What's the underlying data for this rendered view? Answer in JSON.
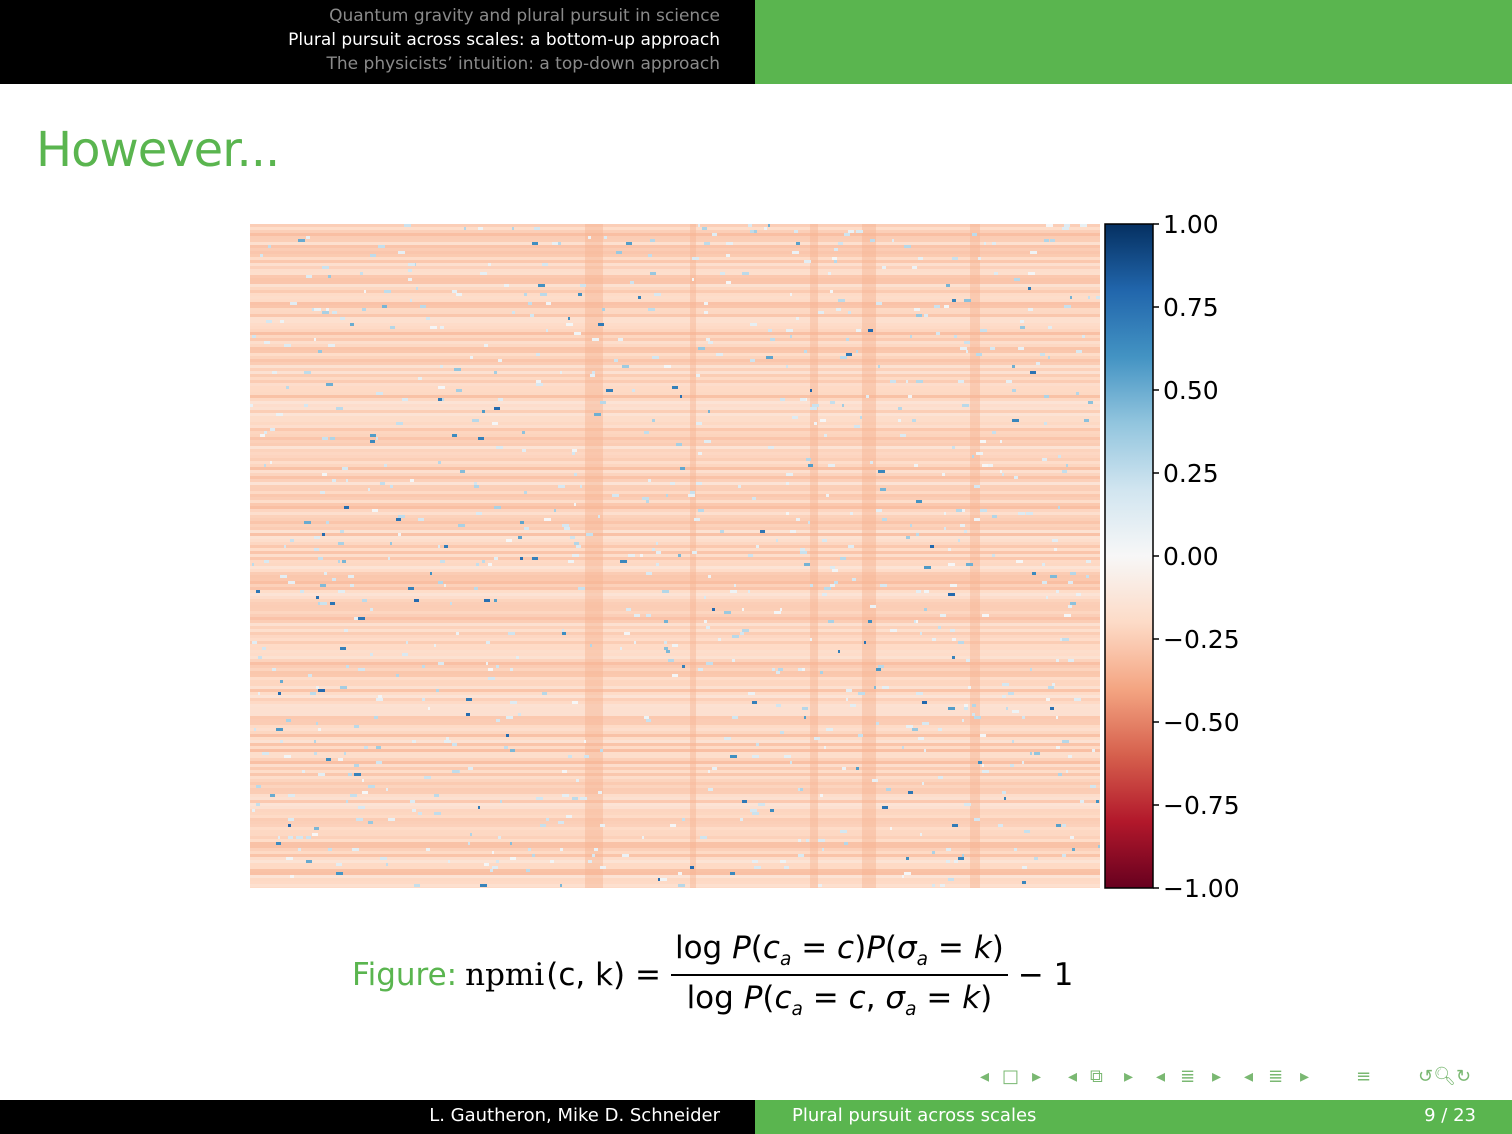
{
  "header": {
    "sections": [
      {
        "label": "Quantum gravity and plural pursuit in science",
        "active": false
      },
      {
        "label": "Plural pursuit across scales: a bottom-up approach",
        "active": true
      },
      {
        "label": "The physicists’ intuition: a top-down approach",
        "active": false
      }
    ]
  },
  "frame": {
    "title": "However..."
  },
  "chart_data": {
    "type": "heatmap",
    "title": "",
    "xlabel": "",
    "ylabel": "",
    "colorscale": "RdBu",
    "vmin": -1.0,
    "vmax": 1.0,
    "typical_value": -0.2,
    "colorbar_ticks": [
      "1.00",
      "0.75",
      "0.50",
      "0.25",
      "0.00",
      "−0.25",
      "−0.50",
      "−0.75",
      "−1.00"
    ],
    "colorbar_tick_values": [
      1.0,
      0.75,
      0.5,
      0.25,
      0.0,
      -0.25,
      -0.5,
      -0.75,
      -1.0
    ],
    "colors": {
      "low": "#67001f",
      "mid": "#f7f7f7",
      "high": "#053061"
    }
  },
  "caption": {
    "label": "Figure:",
    "npmi": "npmi",
    "args": "(c, k) =",
    "minus_one": "− 1"
  },
  "footer": {
    "authors": "L. Gautheron, Mike D. Schneider",
    "short_title": "Plural pursuit across scales",
    "page": "9 / 23"
  },
  "nav_icons": [
    "nav-frame-left-icon",
    "nav-frame-icon",
    "nav-frame-right-icon",
    "nav-subsection-left-icon",
    "nav-subsection-icon",
    "nav-subsection-right-icon",
    "nav-section-left-icon",
    "nav-section-icon",
    "nav-section-right-icon",
    "nav-doc-icon",
    "nav-search-icon"
  ]
}
